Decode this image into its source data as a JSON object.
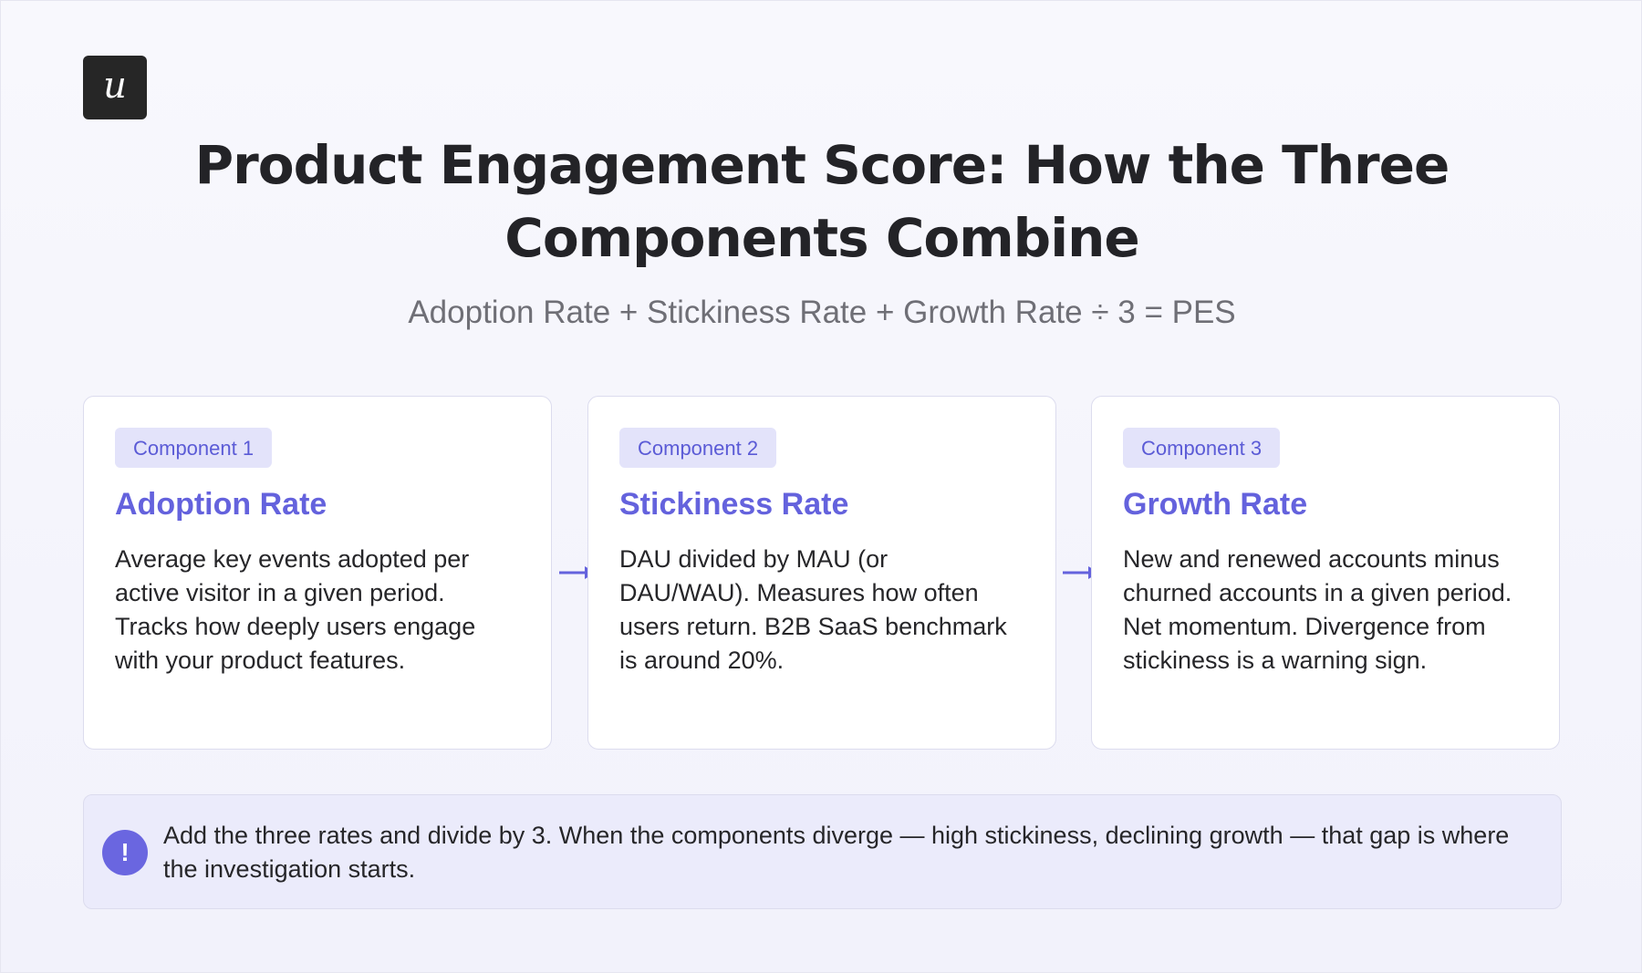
{
  "logo": {
    "letter": "u"
  },
  "title": "Product Engagement Score: How the Three Components Combine",
  "formula": "Adoption Rate + Stickiness Rate + Growth Rate ÷ 3 = PES",
  "components": [
    {
      "badge": "Component 1",
      "title": "Adoption Rate",
      "description": "Average key events adopted per active visitor in a given period. Tracks how deeply users engage with your product features."
    },
    {
      "badge": "Component 2",
      "title": "Stickiness Rate",
      "description": "DAU divided by MAU (or DAU/WAU). Measures how often users return. B2B SaaS benchmark is around 20%."
    },
    {
      "badge": "Component 3",
      "title": "Growth Rate",
      "description": "New and renewed accounts minus churned accounts in a given period. Net momentum. Divergence from stickiness is a warning sign."
    }
  ],
  "note": {
    "icon": "!",
    "text": "Add the three rates and divide by 3. When the components diverge — high stickiness, declining growth — that gap is where the investigation starts."
  },
  "colors": {
    "accent": "#6462dd",
    "badge_bg": "#e3e3fa",
    "note_bg": "#ebebfb",
    "logo_bg": "#262626"
  },
  "icons": {
    "logo": "userpilot-logo-icon",
    "arrow": "arrow-right-icon",
    "note": "exclamation-circle-icon"
  }
}
